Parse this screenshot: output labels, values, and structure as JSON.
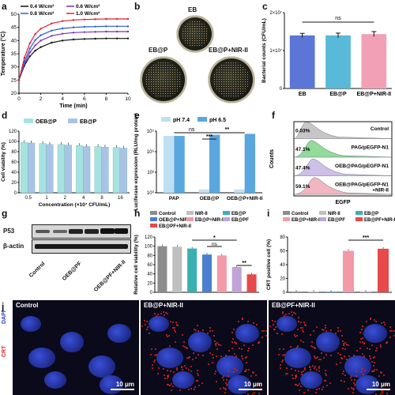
{
  "panels": {
    "a": {
      "label": "a",
      "chart_data": {
        "type": "line",
        "xlabel": "Time (min)",
        "ylabel": "Temperature (°C)",
        "xlim": [
          0,
          10
        ],
        "ylim": [
          20,
          50
        ],
        "xticks": [
          "0",
          "2",
          "4",
          "6",
          "8",
          "10"
        ],
        "yticks": [
          "20",
          "25",
          "30",
          "35",
          "40",
          "45",
          "50"
        ],
        "legend": "top",
        "series": [
          {
            "name": "0.4 W/cm²",
            "color": "#111111",
            "x": [
              0,
              0.5,
              1,
              1.5,
              2,
              3,
              4,
              5,
              6,
              7,
              8,
              9,
              10
            ],
            "y": [
              25,
              30.5,
              34,
              36.2,
              37.5,
              39.2,
              40.0,
              40.4,
              40.6,
              40.7,
              40.8,
              40.8,
              40.8
            ]
          },
          {
            "name": "0.6 W/cm²",
            "color": "#7b2fb0",
            "x": [
              0,
              0.5,
              1,
              1.5,
              2,
              3,
              4,
              5,
              6,
              7,
              8,
              9,
              10
            ],
            "y": [
              25,
              31,
              35.5,
              38.2,
              40,
              41.8,
              42.6,
              43.0,
              43.2,
              43.3,
              43.4,
              43.4,
              43.4
            ]
          },
          {
            "name": "0.8 W/cm²",
            "color": "#2a5bd7",
            "x": [
              0,
              0.5,
              1,
              1.5,
              2,
              3,
              4,
              5,
              6,
              7,
              8,
              9,
              10
            ],
            "y": [
              25,
              32,
              37,
              40.2,
              42,
              43.8,
              44.6,
              45.0,
              45.2,
              45.3,
              45.4,
              45.4,
              45.4
            ]
          },
          {
            "name": "1.0 W/cm²",
            "color": "#e0222a",
            "x": [
              0,
              0.5,
              1,
              1.5,
              2,
              3,
              4,
              5,
              6,
              7,
              8,
              9,
              10
            ],
            "y": [
              25,
              33.5,
              39,
              42.5,
              44.5,
              46.5,
              47.4,
              47.8,
              48.0,
              48.1,
              48.2,
              48.2,
              48.2
            ]
          }
        ]
      }
    },
    "b": {
      "label": "b",
      "dishes": [
        "EB",
        "EB@P",
        "EB@P+NIR-II"
      ]
    },
    "c": {
      "label": "c",
      "chart_data": {
        "type": "bar",
        "categories": [
          "EB",
          "EB@P",
          "EB@P+NIR-II"
        ],
        "values": [
          21000000,
          21000000,
          21500000
        ],
        "errors": [
          800000,
          900000,
          1000000
        ],
        "colors": [
          "#5b76d6",
          "#58b9d8",
          "#f2a0b6"
        ],
        "ylabel": "Bacterial counts (CFU/mL)",
        "yticks": [
          "0",
          "1×10⁷",
          "2×10⁷"
        ],
        "ylim": [
          0,
          30000000
        ],
        "annotation": "ns"
      }
    },
    "d": {
      "label": "d",
      "chart_data": {
        "type": "bar",
        "categories": [
          "0.5",
          "1",
          "2",
          "4",
          "8",
          "16"
        ],
        "xlabel": "Concentration (×10⁷ CFU/mL)",
        "ylabel": "Cell viability (%)",
        "yticks": [
          "0",
          "20",
          "40",
          "60",
          "80",
          "100",
          "120"
        ],
        "ylim": [
          0,
          120
        ],
        "legend": "top",
        "series": [
          {
            "name": "OEB@P",
            "color": "#a6e3e0",
            "values": [
              98,
              96,
              94,
              92,
              90,
              88
            ]
          },
          {
            "name": "EB@P",
            "color": "#a9c3e6",
            "values": [
              97,
              94,
              93,
              90,
              89,
              87
            ]
          }
        ]
      }
    },
    "e": {
      "label": "e",
      "chart_data": {
        "type": "bar",
        "categories": [
          "PAP",
          "OEB@P",
          "OEB@P+NIR-II"
        ],
        "ylabel": "Luciferase expression (RLU/mg protein)",
        "yscale": "log",
        "yticks": [
          "10⁰",
          "10³",
          "10⁶",
          "10⁹"
        ],
        "ylim": [
          1,
          1000000000
        ],
        "legend": "top",
        "series": [
          {
            "name": "pH 7.4",
            "color": "#bfe0f3",
            "values": [
              200000000,
              3,
              3
            ]
          },
          {
            "name": "pH 6.5",
            "color": "#5aa7df",
            "values": [
              200000000,
              300000000,
              400000000
            ]
          }
        ],
        "annotations": [
          "ns",
          "***",
          "**"
        ]
      }
    },
    "f": {
      "label": "f",
      "xlabel": "EGFP",
      "ylabel": "Counts",
      "rows": [
        {
          "pct": "0.03%",
          "name": "Control",
          "color": "#bdbdbd"
        },
        {
          "pct": "47.1%",
          "name": "PAG/pEGFP-N1",
          "color": "#7ed58a"
        },
        {
          "pct": "47.4%",
          "name": "OEB@PAG/pEGFP-N1",
          "color": "#c5b6e6"
        },
        {
          "pct": "59.1%",
          "name": "OEB@PAG/pEGFP-N1 +NIR-II",
          "color": "#f0a9b8"
        }
      ]
    },
    "g": {
      "label": "g",
      "rows": [
        "P53",
        "β-actin"
      ],
      "groups": [
        "Control",
        "OEB@PF",
        "OEB@PF+NIR-II"
      ]
    },
    "h": {
      "label": "h",
      "chart_data": {
        "type": "bar",
        "ylabel": "Relative cell viability (%)",
        "yticks": [
          "0",
          "20",
          "40",
          "60",
          "80",
          "100",
          "120"
        ],
        "ylim": [
          0,
          120
        ],
        "legend": "top",
        "series": [
          {
            "name": "Control",
            "color": "#8c8c8c",
            "values": [
              100
            ]
          },
          {
            "name": "NIR-II",
            "color": "#bfbfbf",
            "values": [
              99
            ]
          },
          {
            "name": "EB@P",
            "color": "#3bb0b0",
            "values": [
              95
            ]
          },
          {
            "name": "OEB@P+NIR-II",
            "color": "#4a7fd0",
            "values": [
              82
            ]
          },
          {
            "name": "EB@P+NIR-II",
            "color": "#f29aa8",
            "values": [
              80
            ]
          },
          {
            "name": "EB@PF",
            "color": "#c0a3d8",
            "values": [
              55
            ]
          },
          {
            "name": "EB@PF+NIR-II",
            "color": "#e64a4a",
            "values": [
              39
            ]
          }
        ],
        "annotations": [
          "*",
          "ns",
          "**"
        ]
      }
    },
    "i": {
      "label": "i",
      "chart_data": {
        "type": "bar",
        "ylabel": "CRT positive cell (%)",
        "yticks": [
          "0",
          "20",
          "40",
          "60",
          "80"
        ],
        "ylim": [
          0,
          80
        ],
        "legend": "top",
        "series": [
          {
            "name": "Control",
            "color": "#8c8c8c",
            "values": [
              1
            ]
          },
          {
            "name": "NIR-II",
            "color": "#bfbfbf",
            "values": [
              1
            ]
          },
          {
            "name": "EB@P",
            "color": "#3bb0b0",
            "values": [
              1
            ]
          },
          {
            "name": "EB@P+NIR-II",
            "color": "#f29aa8",
            "values": [
              60
            ]
          },
          {
            "name": "EB@PF",
            "color": "#c0a3d8",
            "values": [
              1
            ]
          },
          {
            "name": "EB@PF+NIR-II",
            "color": "#e64a4a",
            "values": [
              63
            ]
          }
        ],
        "annotations": [
          "***"
        ]
      }
    },
    "j": {
      "label": "j",
      "side_labels": [
        "DAPI",
        "CRT"
      ],
      "images": [
        {
          "title": "Control",
          "scale": "10 μm"
        },
        {
          "title": "EB@P+NIR-II",
          "scale": "10 μm"
        },
        {
          "title": "EB@PF+NIR-II",
          "scale": "10 μm"
        }
      ]
    }
  }
}
